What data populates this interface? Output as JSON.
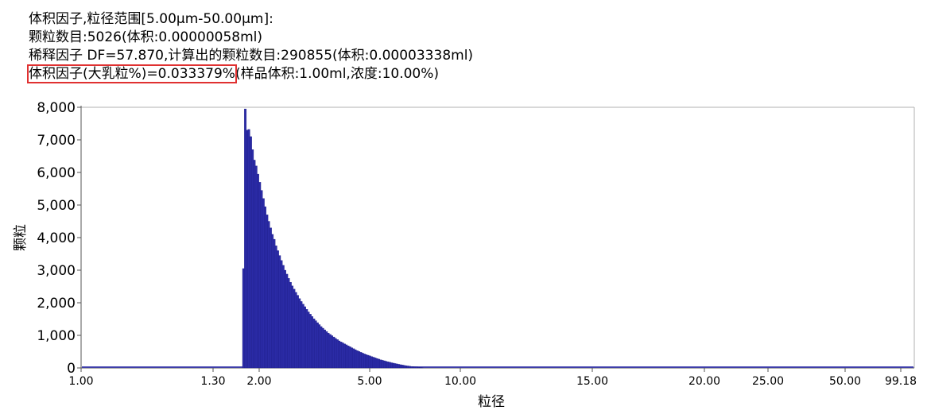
{
  "header": {
    "line1": "体积因子,粒径范围[5.00μm-50.00μm]:",
    "line2": "颗粒数目:5026(体积:0.00000058ml)",
    "line3": "稀释因子 DF=57.870,计算出的颗粒数目:290855(体积:0.00003338ml)",
    "line4_highlight": "体积因子(大乳粒%)=0.033379%",
    "line4_rest": "(样品体积:1.00ml,浓度:10.00%)",
    "highlight_color": "#e03131"
  },
  "chart_data": {
    "type": "bar",
    "xlabel": "粒径",
    "ylabel": "颗粒",
    "ylim": [
      0,
      8000
    ],
    "y_ticks": [
      "0",
      "1,000",
      "2,000",
      "3,000",
      "4,000",
      "5,000",
      "6,000",
      "7,000",
      "8,000"
    ],
    "x_ticks": [
      "1.00",
      "1.30",
      "2.00",
      "5.00",
      "10.00",
      "15.00",
      "20.00",
      "25.00",
      "50.00",
      "99.18"
    ],
    "bar_color": "#2b2ba6",
    "bins_start": "1.80",
    "bins_end": "9.50",
    "values": [
      3050,
      7950,
      7300,
      7320,
      7100,
      6700,
      6380,
      6200,
      5950,
      5700,
      5450,
      5200,
      4950,
      4700,
      4500,
      4300,
      4100,
      3950,
      3750,
      3600,
      3450,
      3300,
      3150,
      3000,
      2880,
      2750,
      2630,
      2520,
      2420,
      2320,
      2230,
      2130,
      2040,
      1960,
      1880,
      1800,
      1720,
      1650,
      1580,
      1510,
      1450,
      1390,
      1330,
      1270,
      1220,
      1170,
      1120,
      1070,
      1030,
      990,
      950,
      910,
      870,
      830,
      800,
      770,
      740,
      710,
      680,
      650,
      620,
      590,
      560,
      530,
      505,
      480,
      455,
      430,
      410,
      390,
      370,
      350,
      330,
      310,
      290,
      270,
      250,
      235,
      220,
      205,
      190,
      175,
      160,
      148,
      136,
      124,
      112,
      100,
      90,
      80,
      70,
      62,
      54,
      46,
      40,
      34,
      28,
      22,
      16,
      10
    ]
  }
}
